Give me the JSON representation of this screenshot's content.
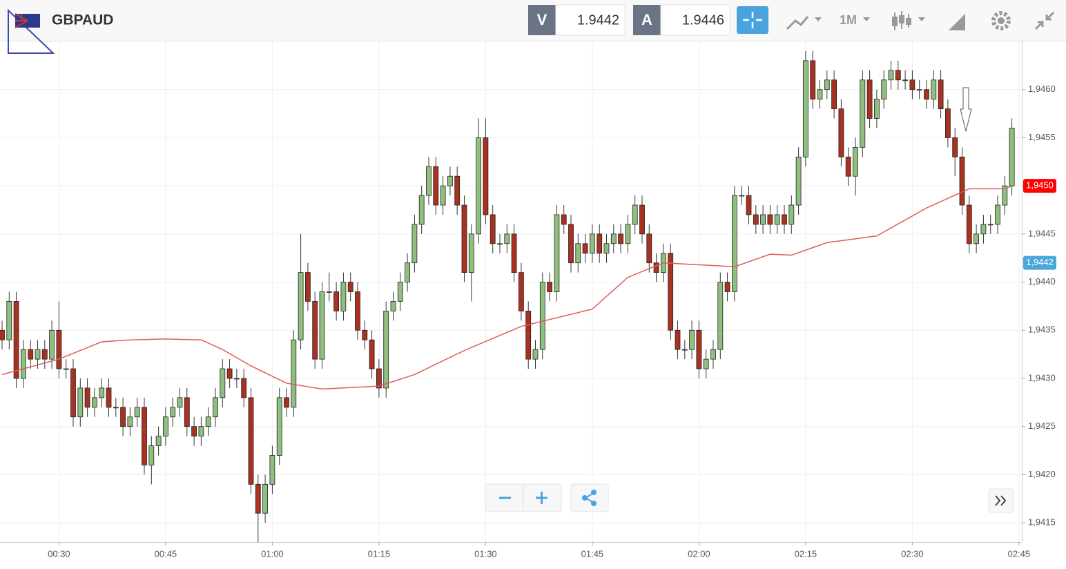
{
  "header": {
    "symbol": "GBPAUD",
    "bid": {
      "label": "V",
      "value": 1.9442
    },
    "ask": {
      "label": "A",
      "value": 1.9446
    },
    "timeframe": "1M"
  },
  "chart_data": {
    "type": "candlestick",
    "x": [
      "00:22",
      "00:23",
      "00:24",
      "00:25",
      "00:26",
      "00:27",
      "00:28",
      "00:29",
      "00:30",
      "00:31",
      "00:32",
      "00:33",
      "00:34",
      "00:35",
      "00:36",
      "00:37",
      "00:38",
      "00:39",
      "00:40",
      "00:41",
      "00:42",
      "00:43",
      "00:44",
      "00:45",
      "00:46",
      "00:47",
      "00:48",
      "00:49",
      "00:50",
      "00:51",
      "00:52",
      "00:53",
      "00:54",
      "00:55",
      "00:56",
      "00:57",
      "00:58",
      "00:59",
      "01:00",
      "01:01",
      "01:02",
      "01:03",
      "01:04",
      "01:05",
      "01:06",
      "01:07",
      "01:08",
      "01:09",
      "01:10",
      "01:11",
      "01:12",
      "01:13",
      "01:14",
      "01:15",
      "01:16",
      "01:17",
      "01:18",
      "01:19",
      "01:20",
      "01:21",
      "01:22",
      "01:23",
      "01:24",
      "01:25",
      "01:26",
      "01:27",
      "01:28",
      "01:29",
      "01:30",
      "01:31",
      "01:32",
      "01:33",
      "01:34",
      "01:35",
      "01:36",
      "01:37",
      "01:38",
      "01:39",
      "01:40",
      "01:41",
      "01:42",
      "01:43",
      "01:44",
      "01:45",
      "01:46",
      "01:47",
      "01:48",
      "01:49",
      "01:50",
      "01:51",
      "01:52",
      "01:53",
      "01:54",
      "01:55",
      "01:56",
      "01:57",
      "01:58",
      "01:59",
      "02:00",
      "02:01",
      "02:02",
      "02:03",
      "02:04",
      "02:05",
      "02:06",
      "02:07",
      "02:08",
      "02:09",
      "02:10",
      "02:11",
      "02:12",
      "02:13",
      "02:14",
      "02:15",
      "02:16",
      "02:17",
      "02:18",
      "02:19",
      "02:20",
      "02:21",
      "02:22",
      "02:23",
      "02:24",
      "02:25",
      "02:26",
      "02:27",
      "02:28",
      "02:29",
      "02:30",
      "02:31",
      "02:32",
      "02:33",
      "02:34",
      "02:35",
      "02:36",
      "02:37",
      "02:38",
      "02:39",
      "02:40",
      "02:41",
      "02:42",
      "02:43",
      "02:44"
    ],
    "open": [
      1.9435,
      1.9434,
      1.9438,
      1.943,
      1.9433,
      1.9432,
      1.9433,
      1.9432,
      1.9435,
      1.9431,
      1.9431,
      1.9426,
      1.9429,
      1.9427,
      1.9428,
      1.9429,
      1.9427,
      1.9427,
      1.9425,
      1.9426,
      1.9427,
      1.9421,
      1.9423,
      1.9424,
      1.9426,
      1.9427,
      1.9428,
      1.9425,
      1.9424,
      1.9425,
      1.9426,
      1.9428,
      1.9431,
      1.943,
      1.943,
      1.9428,
      1.9419,
      1.9416,
      1.9419,
      1.9422,
      1.9428,
      1.9427,
      1.9434,
      1.9441,
      1.9438,
      1.9432,
      1.9439,
      1.9439,
      1.9437,
      1.944,
      1.9439,
      1.9435,
      1.9434,
      1.9431,
      1.9429,
      1.9437,
      1.9438,
      1.944,
      1.9442,
      1.9446,
      1.9449,
      1.9452,
      1.9448,
      1.945,
      1.9451,
      1.9448,
      1.9441,
      1.9445,
      1.9455,
      1.9447,
      1.9444,
      1.9444,
      1.9445,
      1.9441,
      1.9437,
      1.9432,
      1.9433,
      1.944,
      1.9439,
      1.9447,
      1.9446,
      1.9442,
      1.9444,
      1.9443,
      1.9445,
      1.9443,
      1.9444,
      1.9445,
      1.9444,
      1.9446,
      1.9448,
      1.9445,
      1.9442,
      1.9441,
      1.9443,
      1.9435,
      1.9433,
      1.9433,
      1.9435,
      1.9431,
      1.9432,
      1.9433,
      1.944,
      1.9439,
      1.9449,
      1.9449,
      1.9447,
      1.9446,
      1.9447,
      1.9446,
      1.9447,
      1.9446,
      1.9448,
      1.9453,
      1.9463,
      1.9459,
      1.946,
      1.9461,
      1.9458,
      1.9453,
      1.9451,
      1.9454,
      1.9461,
      1.9457,
      1.9459,
      1.9461,
      1.9462,
      1.9461,
      1.9461,
      1.946,
      1.946,
      1.9459,
      1.9461,
      1.9458,
      1.9455,
      1.9453,
      1.9448,
      1.9444,
      1.9445,
      1.9446,
      1.9446,
      1.9448,
      1.945
    ],
    "high": [
      1.9436,
      1.9439,
      1.9439,
      1.9434,
      1.9434,
      1.9434,
      1.9434,
      1.9436,
      1.9438,
      1.9432,
      1.9432,
      1.943,
      1.943,
      1.9429,
      1.943,
      1.943,
      1.9428,
      1.9428,
      1.9427,
      1.9428,
      1.9428,
      1.9424,
      1.9425,
      1.9427,
      1.9428,
      1.9429,
      1.9429,
      1.9426,
      1.9426,
      1.9427,
      1.9429,
      1.9432,
      1.9432,
      1.9431,
      1.9431,
      1.9429,
      1.942,
      1.942,
      1.9423,
      1.9429,
      1.9429,
      1.9435,
      1.9445,
      1.9442,
      1.9439,
      1.944,
      1.9441,
      1.944,
      1.9441,
      1.9441,
      1.944,
      1.9436,
      1.9435,
      1.9432,
      1.9438,
      1.9439,
      1.9441,
      1.9443,
      1.9447,
      1.945,
      1.9453,
      1.9453,
      1.9451,
      1.9452,
      1.9452,
      1.9449,
      1.9446,
      1.9457,
      1.9457,
      1.9448,
      1.9445,
      1.9446,
      1.9446,
      1.9442,
      1.9438,
      1.9434,
      1.9441,
      1.9441,
      1.9448,
      1.9448,
      1.9447,
      1.9445,
      1.9445,
      1.9446,
      1.9446,
      1.9445,
      1.9446,
      1.9446,
      1.9447,
      1.9449,
      1.9449,
      1.9446,
      1.9443,
      1.9444,
      1.9444,
      1.9436,
      1.9434,
      1.9436,
      1.9436,
      1.9433,
      1.9434,
      1.9441,
      1.9441,
      1.945,
      1.945,
      1.945,
      1.9448,
      1.9448,
      1.9448,
      1.9448,
      1.9448,
      1.9449,
      1.9454,
      1.9464,
      1.9464,
      1.9461,
      1.9462,
      1.9462,
      1.9459,
      1.9454,
      1.9455,
      1.9462,
      1.9462,
      1.946,
      1.9462,
      1.9463,
      1.9463,
      1.9462,
      1.9462,
      1.9461,
      1.9461,
      1.9462,
      1.9462,
      1.9459,
      1.9456,
      1.9454,
      1.9449,
      1.9446,
      1.9447,
      1.9447,
      1.9449,
      1.9451,
      1.9457
    ],
    "low": [
      1.9433,
      1.9433,
      1.9429,
      1.9429,
      1.9431,
      1.9431,
      1.9431,
      1.9431,
      1.943,
      1.943,
      1.9425,
      1.9425,
      1.9426,
      1.9426,
      1.9427,
      1.9426,
      1.9426,
      1.9424,
      1.9424,
      1.9425,
      1.942,
      1.9419,
      1.9422,
      1.9423,
      1.9425,
      1.9426,
      1.9424,
      1.9423,
      1.9423,
      1.9424,
      1.9425,
      1.9427,
      1.9429,
      1.9429,
      1.9427,
      1.9418,
      1.9413,
      1.9415,
      1.9418,
      1.9421,
      1.9426,
      1.9426,
      1.9433,
      1.9437,
      1.9431,
      1.9431,
      1.9438,
      1.9436,
      1.9436,
      1.9438,
      1.9434,
      1.9433,
      1.943,
      1.9428,
      1.9428,
      1.9436,
      1.9437,
      1.9439,
      1.9441,
      1.9445,
      1.9448,
      1.9447,
      1.9447,
      1.9449,
      1.9447,
      1.944,
      1.9438,
      1.9444,
      1.9446,
      1.9443,
      1.9443,
      1.9443,
      1.944,
      1.9436,
      1.9431,
      1.9431,
      1.9432,
      1.9438,
      1.9438,
      1.9445,
      1.9441,
      1.9441,
      1.9442,
      1.9442,
      1.9442,
      1.9442,
      1.9443,
      1.9443,
      1.9443,
      1.9445,
      1.9444,
      1.9441,
      1.944,
      1.944,
      1.9434,
      1.9432,
      1.9432,
      1.9432,
      1.943,
      1.943,
      1.9431,
      1.9432,
      1.9438,
      1.9438,
      1.9448,
      1.9446,
      1.9445,
      1.9445,
      1.9445,
      1.9445,
      1.9445,
      1.9445,
      1.9447,
      1.9452,
      1.9458,
      1.9458,
      1.9459,
      1.9457,
      1.9452,
      1.945,
      1.9449,
      1.9453,
      1.9456,
      1.9456,
      1.9458,
      1.946,
      1.946,
      1.946,
      1.9459,
      1.9459,
      1.9458,
      1.9458,
      1.9457,
      1.9454,
      1.9451,
      1.9447,
      1.9443,
      1.9443,
      1.9444,
      1.9445,
      1.9445,
      1.9447,
      1.9449
    ],
    "close": [
      1.9434,
      1.9438,
      1.943,
      1.9433,
      1.9432,
      1.9433,
      1.9432,
      1.9435,
      1.9431,
      1.9431,
      1.9426,
      1.9429,
      1.9427,
      1.9428,
      1.9429,
      1.9427,
      1.9427,
      1.9425,
      1.9426,
      1.9427,
      1.9421,
      1.9423,
      1.9424,
      1.9426,
      1.9427,
      1.9428,
      1.9425,
      1.9424,
      1.9425,
      1.9426,
      1.9428,
      1.9431,
      1.943,
      1.943,
      1.9428,
      1.9419,
      1.9416,
      1.9419,
      1.9422,
      1.9428,
      1.9427,
      1.9434,
      1.9441,
      1.9438,
      1.9432,
      1.9439,
      1.9439,
      1.9437,
      1.944,
      1.9439,
      1.9435,
      1.9434,
      1.9431,
      1.9429,
      1.9437,
      1.9438,
      1.944,
      1.9442,
      1.9446,
      1.9449,
      1.9452,
      1.9448,
      1.945,
      1.9451,
      1.9448,
      1.9441,
      1.9445,
      1.9455,
      1.9447,
      1.9444,
      1.9444,
      1.9445,
      1.9441,
      1.9437,
      1.9432,
      1.9433,
      1.944,
      1.9439,
      1.9447,
      1.9446,
      1.9442,
      1.9444,
      1.9443,
      1.9445,
      1.9443,
      1.9444,
      1.9445,
      1.9444,
      1.9446,
      1.9448,
      1.9445,
      1.9442,
      1.9441,
      1.9443,
      1.9435,
      1.9433,
      1.9433,
      1.9435,
      1.9431,
      1.9432,
      1.9433,
      1.944,
      1.9439,
      1.9449,
      1.9449,
      1.9447,
      1.9446,
      1.9447,
      1.9446,
      1.9447,
      1.9446,
      1.9448,
      1.9453,
      1.9463,
      1.9459,
      1.946,
      1.9461,
      1.9458,
      1.9453,
      1.9451,
      1.9454,
      1.9461,
      1.9457,
      1.9459,
      1.9461,
      1.9462,
      1.9461,
      1.9461,
      1.946,
      1.946,
      1.9459,
      1.9461,
      1.9458,
      1.9455,
      1.9453,
      1.9448,
      1.9444,
      1.9445,
      1.9446,
      1.9446,
      1.9448,
      1.945,
      1.9456
    ],
    "up_color": "#8fbf7f",
    "down_color": "#a8321f",
    "moving_average": {
      "color": "#e05a5a",
      "x": [
        "00:22",
        "00:30",
        "00:36",
        "00:40",
        "00:45",
        "00:50",
        "00:53",
        "00:57",
        "01:02",
        "01:07",
        "01:15",
        "01:20",
        "01:27",
        "01:35",
        "01:45",
        "01:50",
        "01:55",
        "02:05",
        "02:10",
        "02:13",
        "02:18",
        "02:25",
        "02:32",
        "02:38",
        "02:43",
        "02:44"
      ],
      "values": [
        1.94304,
        1.9432,
        1.94338,
        1.9434,
        1.94341,
        1.9434,
        1.9433,
        1.94313,
        1.94295,
        1.94289,
        1.94292,
        1.94304,
        1.94329,
        1.94354,
        1.94372,
        1.94405,
        1.9442,
        1.94416,
        1.94429,
        1.94428,
        1.94441,
        1.94448,
        1.94477,
        1.94497,
        1.94497,
        1.945
      ]
    },
    "price_labels": [
      {
        "value": 1.945,
        "label": "1,9450",
        "color": "#ff0000"
      },
      {
        "value": 1.9442,
        "label": "1,9442",
        "color": "#4aa8d8"
      }
    ],
    "ylim": [
      1.9413,
      1.9465
    ],
    "yticks": [
      {
        "value": 1.9415,
        "label": "1,9415"
      },
      {
        "value": 1.942,
        "label": "1,9420"
      },
      {
        "value": 1.9425,
        "label": "1,9425"
      },
      {
        "value": 1.943,
        "label": "1,9430"
      },
      {
        "value": 1.9435,
        "label": "1,9435"
      },
      {
        "value": 1.944,
        "label": "1,9440"
      },
      {
        "value": 1.9445,
        "label": "1,9445"
      },
      {
        "value": 1.945,
        "label": "1,9450"
      },
      {
        "value": 1.9455,
        "label": "1,9455"
      },
      {
        "value": 1.946,
        "label": "1,9460"
      }
    ],
    "xticks": [
      "00:30",
      "00:45",
      "01:00",
      "01:15",
      "01:30",
      "01:45",
      "02:00",
      "02:15",
      "02:30",
      "02:45"
    ],
    "grid": true
  }
}
